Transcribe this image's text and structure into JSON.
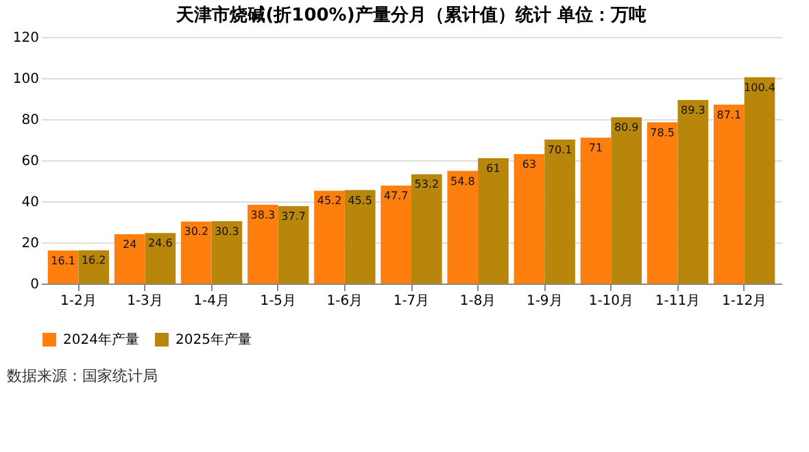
{
  "chart_data": {
    "type": "bar",
    "title": "天津市烧碱(折100%)产量分月（累计值）统计  单位：万吨",
    "categories": [
      "1-2月",
      "1-3月",
      "1-4月",
      "1-5月",
      "1-6月",
      "1-7月",
      "1-8月",
      "1-9月",
      "1-10月",
      "1-11月",
      "1-12月"
    ],
    "series": [
      {
        "name": "2024年产量",
        "color": "#ff7f0e",
        "values": [
          16.1,
          24,
          30.2,
          38.3,
          45.2,
          47.7,
          54.8,
          63,
          71,
          78.5,
          87.1
        ]
      },
      {
        "name": "2025年产量",
        "color": "#b8860b",
        "values": [
          16.2,
          24.6,
          30.3,
          37.7,
          45.5,
          53.2,
          61,
          70.1,
          80.9,
          89.3,
          100.4
        ]
      }
    ],
    "ylim": [
      0,
      120
    ],
    "yticks": [
      0,
      20,
      40,
      60,
      80,
      100,
      120
    ],
    "grid": "y",
    "legend": "bottom",
    "data_labels": true,
    "annotations": [
      "数据来源：国家统计局"
    ]
  }
}
